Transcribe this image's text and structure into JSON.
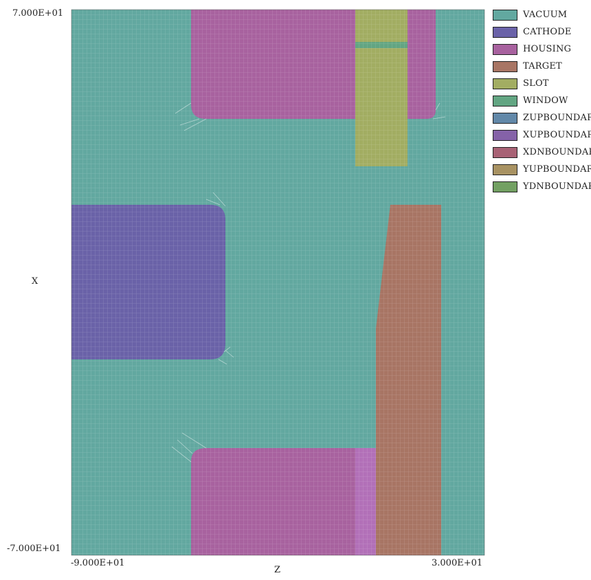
{
  "axes": {
    "x_title": "Z",
    "y_title": "X",
    "x_min_label": "-9.000E+01",
    "x_max_label": "3.000E+01",
    "y_min_label": "-7.000E+01",
    "y_max_label": "7.000E+01"
  },
  "legend": [
    {
      "label": "VACUUM",
      "color": "#62a8a0"
    },
    {
      "label": "CATHODE",
      "color": "#6a62a8"
    },
    {
      "label": "HOUSING",
      "color": "#a8629f"
    },
    {
      "label": "TARGET",
      "color": "#a87564"
    },
    {
      "label": "SLOT",
      "color": "#a2ad62"
    },
    {
      "label": "WINDOW",
      "color": "#62a582"
    },
    {
      "label": "ZUPBOUNDARY",
      "color": "#6288a8"
    },
    {
      "label": "XUPBOUNDARY",
      "color": "#8562a8"
    },
    {
      "label": "XDNBOUNDARY",
      "color": "#a86275"
    },
    {
      "label": "YUPBOUNDARY",
      "color": "#a89262"
    },
    {
      "label": "YDNBOUNDARY",
      "color": "#72a062"
    }
  ]
}
